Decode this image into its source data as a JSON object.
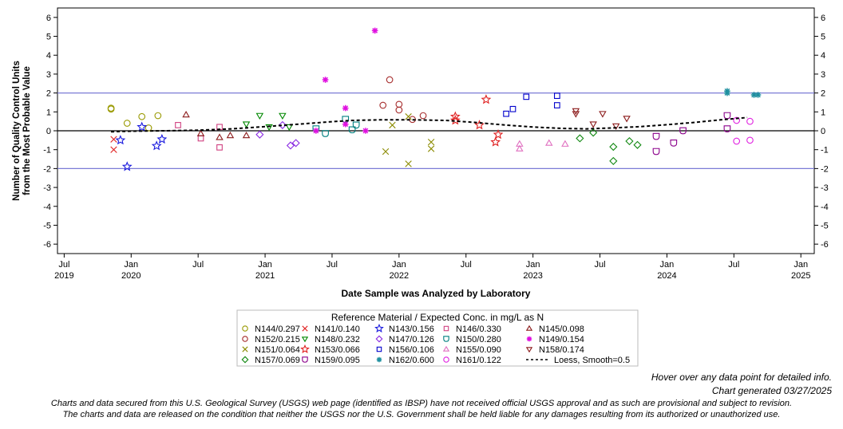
{
  "chart_data": {
    "type": "scatter",
    "title": "",
    "xlabel": "Date Sample was Analyzed by Laboratory",
    "ylabel_lines": [
      "Number of Quality Control Units",
      "from the Most Probable Value"
    ],
    "ylim": [
      -6.5,
      6.5
    ],
    "yticks": [
      -6,
      -5,
      -4,
      -3,
      -2,
      -1,
      0,
      1,
      2,
      3,
      4,
      5,
      6
    ],
    "xlim": [
      2019.45,
      2025.1
    ],
    "xticks": [
      {
        "t": 2019.5,
        "lines": [
          "Jul",
          "2019"
        ]
      },
      {
        "t": 2020.0,
        "lines": [
          "Jan",
          "2020"
        ]
      },
      {
        "t": 2020.5,
        "lines": [
          "Jul",
          ""
        ]
      },
      {
        "t": 2021.0,
        "lines": [
          "Jan",
          "2021"
        ]
      },
      {
        "t": 2021.5,
        "lines": [
          "Jul",
          ""
        ]
      },
      {
        "t": 2022.0,
        "lines": [
          "Jan",
          "2022"
        ]
      },
      {
        "t": 2022.5,
        "lines": [
          "Jul",
          ""
        ]
      },
      {
        "t": 2023.0,
        "lines": [
          "Jan",
          "2023"
        ]
      },
      {
        "t": 2023.5,
        "lines": [
          "Jul",
          ""
        ]
      },
      {
        "t": 2024.0,
        "lines": [
          "Jan",
          "2024"
        ]
      },
      {
        "t": 2024.5,
        "lines": [
          "Jul",
          ""
        ]
      },
      {
        "t": 2025.0,
        "lines": [
          "Jan",
          "2025"
        ]
      }
    ],
    "reference_lines": [
      2,
      0,
      -2
    ],
    "legend": {
      "title": "Reference Material / Expected Conc. in mg/L as N",
      "placement": "bottom-center"
    },
    "series": [
      {
        "name": "N144/0.297",
        "marker": "circle",
        "color": "#999900",
        "points": [
          [
            2019.85,
            1.2
          ],
          [
            2019.85,
            1.15
          ],
          [
            2019.97,
            0.4
          ],
          [
            2020.08,
            0.75
          ],
          [
            2020.13,
            0.15
          ],
          [
            2020.2,
            0.8
          ]
        ]
      },
      {
        "name": "N141/0.140",
        "marker": "x",
        "color": "#e02020",
        "points": [
          [
            2019.87,
            -0.45
          ],
          [
            2019.87,
            -1.0
          ]
        ]
      },
      {
        "name": "N143/0.156",
        "marker": "star",
        "color": "#1a1adf",
        "points": [
          [
            2019.92,
            -0.5
          ],
          [
            2019.97,
            -1.9
          ],
          [
            2020.08,
            0.2
          ],
          [
            2020.19,
            -0.8
          ],
          [
            2020.23,
            -0.45
          ]
        ]
      },
      {
        "name": "N146/0.330",
        "marker": "square",
        "color": "#d04080",
        "points": [
          [
            2020.35,
            0.3
          ],
          [
            2020.52,
            -0.4
          ],
          [
            2020.66,
            0.2
          ],
          [
            2020.66,
            -0.88
          ]
        ]
      },
      {
        "name": "N145/0.098",
        "marker": "triangle-up",
        "color": "#8b1a1a",
        "points": [
          [
            2020.41,
            0.85
          ],
          [
            2020.52,
            -0.15
          ],
          [
            2020.66,
            -0.35
          ],
          [
            2020.74,
            -0.25
          ],
          [
            2020.86,
            -0.25
          ]
        ]
      },
      {
        "name": "N152/0.215",
        "marker": "circle",
        "color": "#a52a2a",
        "points": [
          [
            2021.88,
            1.35
          ],
          [
            2021.93,
            2.7
          ],
          [
            2022.0,
            1.4
          ],
          [
            2022.0,
            1.1
          ],
          [
            2022.1,
            0.6
          ],
          [
            2022.18,
            0.8
          ]
        ]
      },
      {
        "name": "N148/0.232",
        "marker": "triangle-down",
        "color": "#008800",
        "points": [
          [
            2020.86,
            0.35
          ],
          [
            2020.96,
            0.8
          ],
          [
            2021.03,
            0.2
          ],
          [
            2021.13,
            0.8
          ],
          [
            2021.18,
            0.2
          ]
        ]
      },
      {
        "name": "N147/0.126",
        "marker": "diamond",
        "color": "#8a2be2",
        "points": [
          [
            2020.96,
            -0.2
          ],
          [
            2021.13,
            0.3
          ],
          [
            2021.19,
            -0.78
          ],
          [
            2021.23,
            -0.65
          ]
        ]
      },
      {
        "name": "N150/0.280",
        "marker": "shield",
        "color": "#008080",
        "points": [
          [
            2021.38,
            0.1
          ],
          [
            2021.45,
            -0.15
          ],
          [
            2021.6,
            0.6
          ],
          [
            2021.65,
            0.05
          ],
          [
            2021.68,
            0.3
          ]
        ]
      },
      {
        "name": "N149/0.154",
        "marker": "asterisk",
        "color": "#e010e0",
        "points": [
          [
            2021.38,
            0.0
          ],
          [
            2021.45,
            2.7
          ],
          [
            2021.6,
            1.2
          ],
          [
            2021.6,
            0.35
          ],
          [
            2021.75,
            0.0
          ],
          [
            2021.82,
            5.3
          ]
        ]
      },
      {
        "name": "N151/0.064",
        "marker": "x",
        "color": "#8b8b00",
        "points": [
          [
            2021.9,
            -1.1
          ],
          [
            2021.95,
            0.3
          ],
          [
            2022.07,
            -1.75
          ],
          [
            2022.07,
            0.75
          ],
          [
            2022.24,
            -0.6
          ],
          [
            2022.24,
            -0.95
          ]
        ]
      },
      {
        "name": "N153/0.066",
        "marker": "star",
        "color": "#e02020",
        "points": [
          [
            2022.42,
            0.75
          ],
          [
            2022.42,
            0.55
          ],
          [
            2022.6,
            0.3
          ],
          [
            2022.65,
            1.65
          ],
          [
            2022.72,
            -0.6
          ],
          [
            2022.74,
            -0.2
          ]
        ]
      },
      {
        "name": "N156/0.106",
        "marker": "square",
        "color": "#0000cc",
        "points": [
          [
            2022.8,
            0.9
          ],
          [
            2022.85,
            1.15
          ],
          [
            2022.95,
            1.8
          ],
          [
            2023.18,
            1.85
          ],
          [
            2023.18,
            1.35
          ]
        ]
      },
      {
        "name": "N155/0.090",
        "marker": "triangle-up",
        "color": "#e070c0",
        "points": [
          [
            2022.9,
            -0.7
          ],
          [
            2022.9,
            -0.95
          ],
          [
            2023.12,
            -0.65
          ],
          [
            2023.24,
            -0.7
          ]
        ]
      },
      {
        "name": "N158/0.174",
        "marker": "triangle-down",
        "color": "#8b1a1a",
        "points": [
          [
            2023.32,
            1.05
          ],
          [
            2023.32,
            0.9
          ],
          [
            2023.45,
            0.35
          ],
          [
            2023.52,
            0.9
          ],
          [
            2023.62,
            0.25
          ],
          [
            2023.7,
            0.65
          ]
        ]
      },
      {
        "name": "N157/0.069",
        "marker": "diamond",
        "color": "#118811",
        "points": [
          [
            2023.35,
            -0.4
          ],
          [
            2023.45,
            -0.1
          ],
          [
            2023.6,
            -0.85
          ],
          [
            2023.6,
            -1.6
          ],
          [
            2023.72,
            -0.55
          ],
          [
            2023.78,
            -0.75
          ]
        ]
      },
      {
        "name": "N159/0.095",
        "marker": "shield",
        "color": "#8b008b",
        "points": [
          [
            2023.92,
            -0.3
          ],
          [
            2023.92,
            -1.1
          ],
          [
            2024.05,
            -0.65
          ],
          [
            2024.12,
            0.0
          ],
          [
            2024.45,
            0.8
          ],
          [
            2024.45,
            0.1
          ]
        ]
      },
      {
        "name": "N162/0.600",
        "marker": "asterisk",
        "color": "#2090a0",
        "points": [
          [
            2024.45,
            2.1
          ],
          [
            2024.45,
            2.0
          ],
          [
            2024.65,
            1.9
          ],
          [
            2024.68,
            1.9
          ]
        ]
      },
      {
        "name": "N161/0.122",
        "marker": "circle",
        "color": "#e020e0",
        "points": [
          [
            2024.52,
            0.55
          ],
          [
            2024.52,
            -0.55
          ],
          [
            2024.62,
            0.5
          ],
          [
            2024.62,
            -0.5
          ]
        ]
      }
    ],
    "loess": {
      "name": "Loess, Smooth=0.5",
      "points": [
        [
          2019.85,
          -0.05
        ],
        [
          2020.0,
          -0.02
        ],
        [
          2020.25,
          0.0
        ],
        [
          2020.5,
          0.03
        ],
        [
          2020.75,
          0.1
        ],
        [
          2021.0,
          0.22
        ],
        [
          2021.25,
          0.35
        ],
        [
          2021.5,
          0.48
        ],
        [
          2021.65,
          0.55
        ],
        [
          2021.85,
          0.58
        ],
        [
          2022.1,
          0.58
        ],
        [
          2022.35,
          0.55
        ],
        [
          2022.55,
          0.45
        ],
        [
          2022.8,
          0.3
        ],
        [
          2023.0,
          0.2
        ],
        [
          2023.2,
          0.13
        ],
        [
          2023.4,
          0.1
        ],
        [
          2023.6,
          0.15
        ],
        [
          2023.8,
          0.22
        ],
        [
          2024.0,
          0.32
        ],
        [
          2024.2,
          0.44
        ],
        [
          2024.4,
          0.58
        ],
        [
          2024.6,
          0.7
        ]
      ]
    }
  },
  "hover_note": "Hover over any data point for detailed info.",
  "generated_note": "Chart generated 03/27/2025",
  "disclaimer_1": "Charts and data secured from this U.S. Geological Survey (USGS) web page (identified as IBSP) have not received official USGS approval and as such are provisional and subject to revision.",
  "disclaimer_2": "The charts and data are released on the condition that neither the USGS nor the U.S. Government shall be held liable for any damages resulting from its authorized or unauthorized use."
}
